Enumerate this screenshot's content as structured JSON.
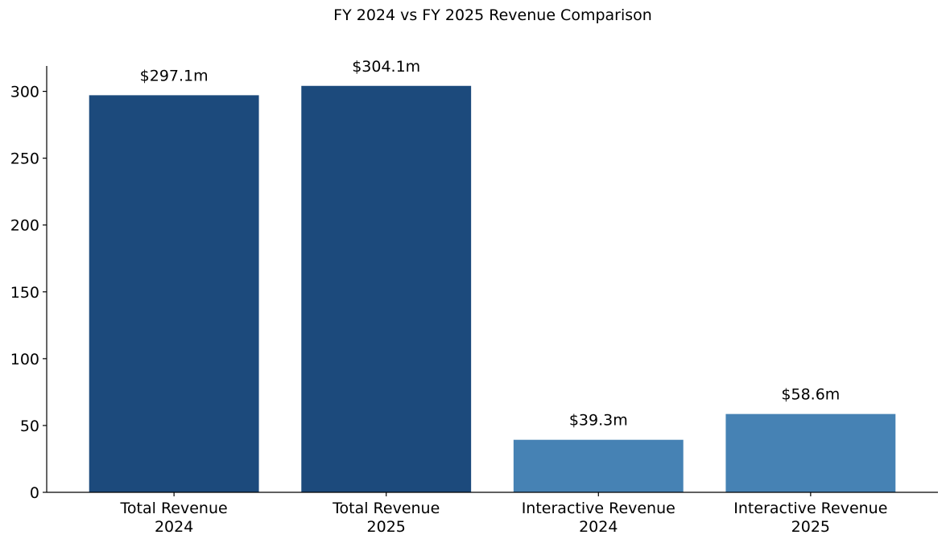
{
  "chart_data": {
    "type": "bar",
    "title": "FY 2024 vs FY 2025 Revenue Comparison",
    "xlabel": "",
    "ylabel": "",
    "categories": [
      [
        "Total Revenue",
        "2024"
      ],
      [
        "Total Revenue",
        "2025"
      ],
      [
        "Interactive Revenue",
        "2024"
      ],
      [
        "Interactive Revenue",
        "2025"
      ]
    ],
    "values": [
      297.1,
      304.1,
      39.3,
      58.6
    ],
    "data_labels": [
      "$297.1m",
      "$304.1m",
      "$39.3m",
      "$58.6m"
    ],
    "colors": [
      "#1c4a7c",
      "#1c4a7c",
      "#4682b4",
      "#4682b4"
    ],
    "ylim": [
      0,
      319
    ],
    "yticks": [
      0,
      50,
      100,
      150,
      200,
      250,
      300
    ],
    "grid": false,
    "legend": null
  }
}
